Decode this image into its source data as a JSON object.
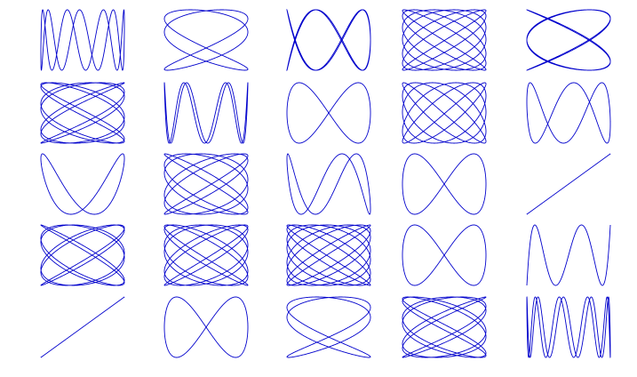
{
  "chart_data": [
    {
      "type": "lissajous",
      "a": 1,
      "b": 7,
      "delta": 0.6,
      "color": "#0000cc"
    },
    {
      "type": "lissajous",
      "a": 3,
      "b": 2,
      "delta": 0.4,
      "color": "#0000cc"
    },
    {
      "type": "lissajous",
      "a": 2,
      "b": 5,
      "delta": 0.3,
      "color": "#0000cc"
    },
    {
      "type": "lissajous",
      "a": 7,
      "b": 6,
      "delta": 0.5,
      "color": "#0000cc"
    },
    {
      "type": "lissajous",
      "a": 4,
      "b": 3,
      "delta": 0.5,
      "color": "#0000cc"
    },
    {
      "type": "lissajous",
      "a": 7,
      "b": 5,
      "delta": 0.5,
      "color": "#0000cc"
    },
    {
      "type": "lissajous",
      "a": 1,
      "b": 6,
      "delta": 0.3,
      "color": "#0000cc"
    },
    {
      "type": "lissajous",
      "a": 1,
      "b": 2,
      "delta": 0,
      "color": "#0000cc"
    },
    {
      "type": "lissajous",
      "a": 5,
      "b": 6,
      "delta": 0.5,
      "color": "#0000cc"
    },
    {
      "type": "lissajous",
      "a": 1,
      "b": 3,
      "delta": 0.4,
      "color": "#0000cc"
    },
    {
      "type": "lissajous",
      "a": 1,
      "b": 2,
      "delta": 0.5,
      "color": "#0000cc"
    },
    {
      "type": "lissajous",
      "a": 6,
      "b": 5,
      "delta": 0.5,
      "color": "#0000cc"
    },
    {
      "type": "lissajous",
      "a": 1,
      "b": 3,
      "delta": 0.2,
      "color": "#0000cc"
    },
    {
      "type": "lissajous",
      "a": 1,
      "b": 2,
      "delta": 0,
      "color": "#0000cc"
    },
    {
      "type": "lissajous",
      "a": 1,
      "b": 1,
      "delta": 0,
      "color": "#0000cc"
    },
    {
      "type": "lissajous",
      "a": 6,
      "b": 5,
      "delta": 0.4,
      "color": "#0000cc"
    },
    {
      "type": "lissajous",
      "a": 7,
      "b": 6,
      "delta": 0.4,
      "color": "#0000cc"
    },
    {
      "type": "lissajous",
      "a": 8,
      "b": 7,
      "delta": 0.5,
      "color": "#0000cc"
    },
    {
      "type": "lissajous",
      "a": 1,
      "b": 2,
      "delta": 0,
      "color": "#0000cc"
    },
    {
      "type": "lissajous",
      "a": 1,
      "b": 5,
      "delta": 0,
      "color": "#0000cc"
    },
    {
      "type": "lissajous",
      "a": 1,
      "b": 1,
      "delta": 0,
      "color": "#0000cc"
    },
    {
      "type": "lissajous",
      "a": 1,
      "b": 2,
      "delta": 0,
      "color": "#0000cc"
    },
    {
      "type": "lissajous",
      "a": 3,
      "b": 2,
      "delta": 0.5,
      "color": "#0000cc"
    },
    {
      "type": "lissajous",
      "a": 7,
      "b": 5,
      "delta": 0.5,
      "color": "#0000cc"
    },
    {
      "type": "lissajous",
      "a": 1,
      "b": 9,
      "delta": 0.4,
      "color": "#0000cc"
    }
  ]
}
